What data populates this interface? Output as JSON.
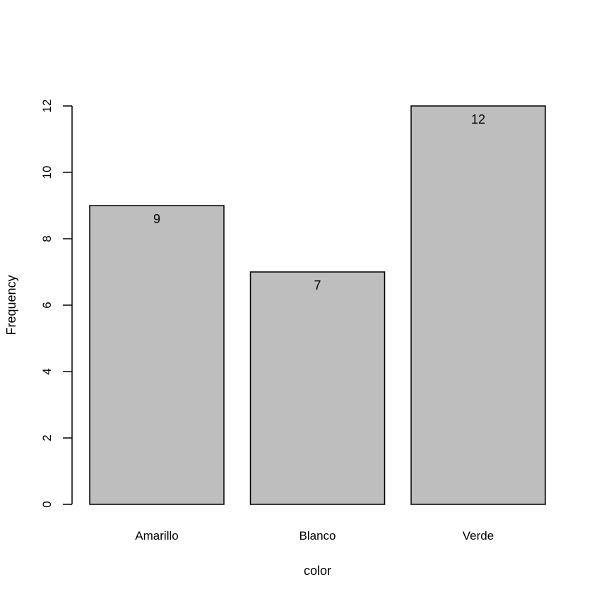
{
  "chart_data": {
    "type": "bar",
    "title": "",
    "xlabel": "color",
    "ylabel": "Frequency",
    "categories": [
      "Amarillo",
      "Blanco",
      "Verde"
    ],
    "values": [
      9,
      7,
      12
    ],
    "data_labels": [
      "9",
      "7",
      "12"
    ],
    "ylim": [
      0,
      12
    ],
    "yticks": [
      0,
      2,
      4,
      6,
      8,
      10,
      12
    ],
    "grid": false,
    "legend": "none",
    "bar_color": "#bebebe",
    "bar_border_color": "#000000"
  }
}
